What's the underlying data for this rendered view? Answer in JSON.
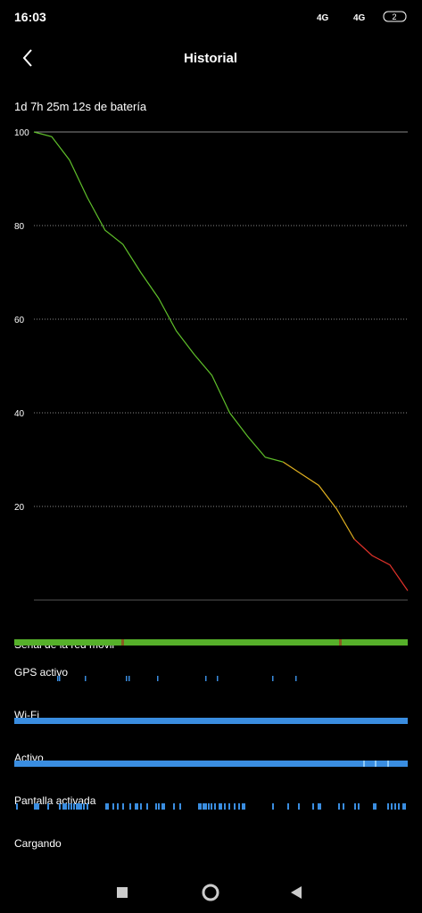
{
  "status_bar": {
    "time": "16:03",
    "net1": "4G",
    "net2": "4G",
    "battery": "2"
  },
  "header": {
    "title": "Historial"
  },
  "summary": "1d 7h 25m 12s de batería",
  "chart_data": {
    "type": "line",
    "ylim": [
      0,
      100
    ],
    "yticks": [
      20,
      40,
      60,
      80,
      100
    ],
    "grid": true,
    "series": [
      {
        "color": "#5fbf2a",
        "values": [
          100,
          99,
          94,
          86,
          79,
          76,
          70,
          64.5,
          57.5,
          52.5,
          48,
          40,
          35,
          30.5,
          29.5,
          null,
          null,
          null,
          null,
          null,
          null,
          null
        ]
      },
      {
        "color": "#e0b020",
        "values": [
          null,
          null,
          null,
          null,
          null,
          null,
          null,
          null,
          null,
          null,
          null,
          null,
          null,
          null,
          29.5,
          27,
          24.5,
          19.5,
          13,
          null,
          null,
          null
        ]
      },
      {
        "color": "#e0322a",
        "values": [
          null,
          null,
          null,
          null,
          null,
          null,
          null,
          null,
          null,
          null,
          null,
          null,
          null,
          null,
          null,
          null,
          null,
          null,
          13,
          9.5,
          7.5,
          2
        ]
      }
    ]
  },
  "tracks": [
    "Señal de la red móvil",
    "GPS activo",
    "Wi-Fi",
    "Activo",
    "Pantalla activada",
    "Cargando"
  ]
}
